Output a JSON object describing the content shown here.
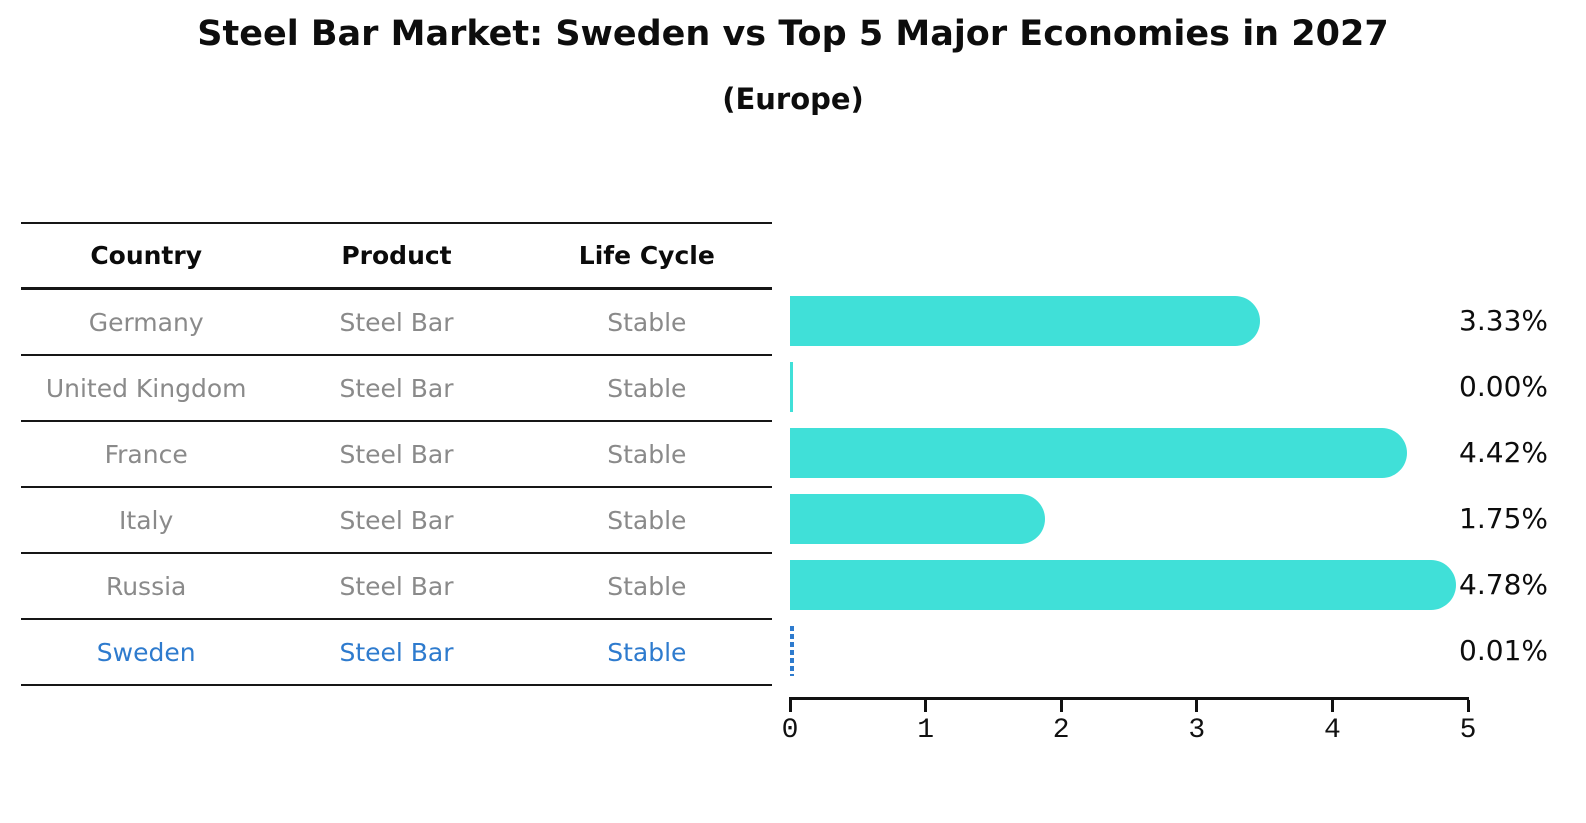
{
  "title": "Steel Bar Market: Sweden vs Top 5 Major Economies in 2027",
  "subtitle": "(Europe)",
  "table": {
    "columns": [
      "Country",
      "Product",
      "Life Cycle"
    ],
    "rows": [
      {
        "country": "Germany",
        "product": "Steel Bar",
        "life_cycle": "Stable",
        "highlighted": false
      },
      {
        "country": "United Kingdom",
        "product": "Steel Bar",
        "life_cycle": "Stable",
        "highlighted": false
      },
      {
        "country": "France",
        "product": "Steel Bar",
        "life_cycle": "Stable",
        "highlighted": false
      },
      {
        "country": "Italy",
        "product": "Steel Bar",
        "life_cycle": "Stable",
        "highlighted": false
      },
      {
        "country": "Russia",
        "product": "Steel Bar",
        "life_cycle": "Stable",
        "highlighted": false
      },
      {
        "country": "Sweden",
        "product": "Steel Bar",
        "life_cycle": "Stable",
        "highlighted": true
      }
    ]
  },
  "chart_data": {
    "type": "bar",
    "orientation": "horizontal",
    "title": "Steel Bar Market: Sweden vs Top 5 Major Economies in 2027",
    "subtitle": "(Europe)",
    "categories": [
      "Germany",
      "United Kingdom",
      "France",
      "Italy",
      "Russia",
      "Sweden"
    ],
    "values": [
      3.33,
      0.0,
      4.42,
      1.75,
      4.78,
      0.01
    ],
    "value_labels": [
      "3.33%",
      "0.00%",
      "4.42%",
      "1.75%",
      "4.78%",
      "0.01%"
    ],
    "xlim": [
      0,
      5
    ],
    "x_ticks": [
      "0",
      "1",
      "2",
      "3",
      "4",
      "5"
    ],
    "grid": false,
    "legend": false,
    "bar_color": "#40E0D8",
    "highlight_color": "#2e7bce",
    "highlight_index": 5,
    "highlight_style": "dashed"
  }
}
